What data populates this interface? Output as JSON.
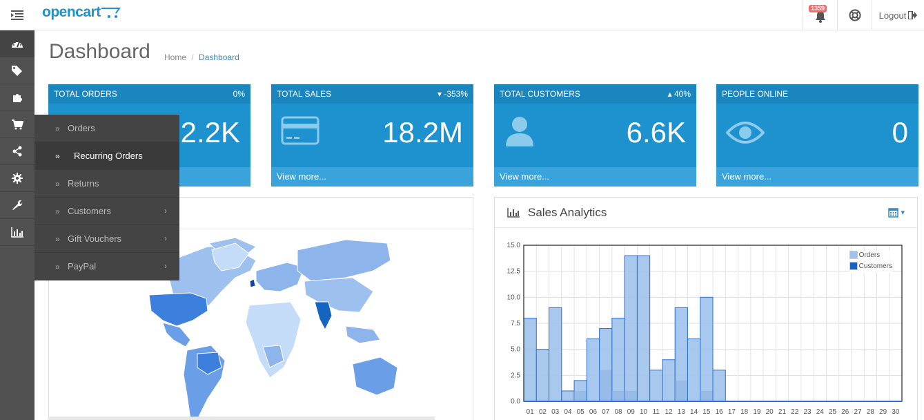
{
  "header": {
    "logo": "opencart",
    "notifications_count": "1359",
    "logout_label": "Logout"
  },
  "sidebar": {
    "items": [
      {
        "icon": "dashboard-icon"
      },
      {
        "icon": "tags-icon"
      },
      {
        "icon": "puzzle-icon"
      },
      {
        "icon": "shopping-cart-icon"
      },
      {
        "icon": "share-icon"
      },
      {
        "icon": "gear-icon"
      },
      {
        "icon": "wrench-icon"
      },
      {
        "icon": "bar-chart-icon"
      }
    ]
  },
  "flyout": {
    "items": [
      {
        "label": "Orders",
        "has_sub": false
      },
      {
        "label": "Recurring Orders",
        "has_sub": false
      },
      {
        "label": "Returns",
        "has_sub": false
      },
      {
        "label": "Customers",
        "has_sub": true
      },
      {
        "label": "Gift Vouchers",
        "has_sub": true
      },
      {
        "label": "PayPal",
        "has_sub": true
      }
    ]
  },
  "page": {
    "title": "Dashboard",
    "breadcrumb_home": "Home",
    "breadcrumb_sep": "/",
    "breadcrumb_current": "Dashboard"
  },
  "tiles": [
    {
      "title": "TOTAL ORDERS",
      "change": "0%",
      "value": "2.2K",
      "footer": ""
    },
    {
      "title": "TOTAL SALES",
      "change": "-353%",
      "value": "18.2M",
      "footer": "View more..."
    },
    {
      "title": "TOTAL CUSTOMERS",
      "change": "40%",
      "value": "6.6K",
      "footer": "View more..."
    },
    {
      "title": "PEOPLE ONLINE",
      "change": "",
      "value": "0",
      "footer": "View more..."
    }
  ],
  "analytics": {
    "title": "Sales Analytics"
  },
  "chart_data": {
    "type": "bar",
    "categories": [
      "01",
      "02",
      "03",
      "04",
      "05",
      "06",
      "07",
      "08",
      "09",
      "10",
      "11",
      "12",
      "13",
      "14",
      "15",
      "16",
      "17",
      "18",
      "19",
      "20",
      "21",
      "22",
      "23",
      "24",
      "25",
      "26",
      "27",
      "28",
      "29",
      "30"
    ],
    "series": [
      {
        "name": "Orders",
        "values": [
          8,
          5,
          9,
          1,
          2,
          6,
          7,
          8,
          14,
          14,
          3,
          4,
          9,
          6,
          10,
          3,
          0,
          0,
          0,
          0,
          0,
          0,
          0,
          0,
          0,
          0,
          0,
          0,
          0,
          0
        ]
      },
      {
        "name": "Customers",
        "values": [
          0,
          0,
          0,
          0,
          1,
          0,
          3,
          1,
          1,
          0,
          0,
          0,
          2,
          0,
          1,
          0,
          0,
          0,
          0,
          0,
          0,
          0,
          0,
          0,
          0,
          0,
          0,
          0,
          0,
          0
        ]
      }
    ],
    "yticks": [
      "0.0",
      "2.5",
      "5.0",
      "7.5",
      "10.0",
      "12.5",
      "15.0"
    ],
    "ylim": [
      0,
      15
    ],
    "grid": true,
    "legend_position": "top-right",
    "colors": {
      "Orders": "#9fc2ec",
      "Customers": "#1565c0"
    }
  },
  "colors": {
    "brand": "#1e91cf",
    "sidebar": "#515151"
  }
}
